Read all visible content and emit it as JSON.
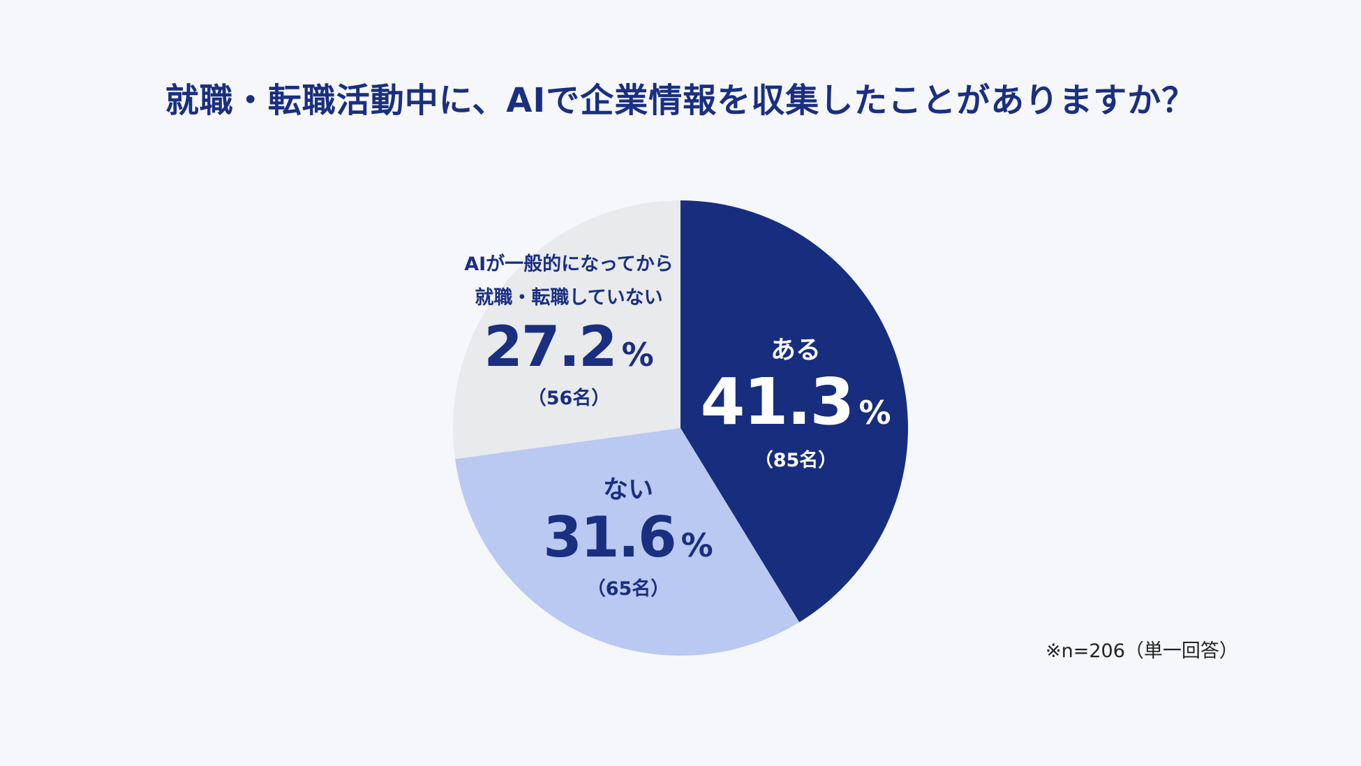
{
  "chart_data": {
    "type": "pie",
    "title": "就職・転職活動中に、AIで企業情報を収集したことがありますか？",
    "unit_symbol": "%",
    "slices": [
      {
        "label_lines": [
          "ある"
        ],
        "percent": 41.3,
        "percent_text": "41.3",
        "count_text": "（85名）",
        "color": "#172d7e",
        "text_color": "#ffffff"
      },
      {
        "label_lines": [
          "ない"
        ],
        "percent": 31.6,
        "percent_text": "31.6",
        "count_text": "（65名）",
        "color": "#b9c9f1",
        "text_color": "#1a2f80"
      },
      {
        "label_lines": [
          "AIが一般的になってから",
          "就職・転職していない"
        ],
        "percent": 27.2,
        "percent_text": "27.2",
        "count_text": "（56名）",
        "color": "#e9eaec",
        "text_color": "#1a2f80"
      }
    ],
    "start": "top",
    "direction": "clockwise",
    "legend": "none"
  },
  "footnote": "※n=206（単一回答）"
}
